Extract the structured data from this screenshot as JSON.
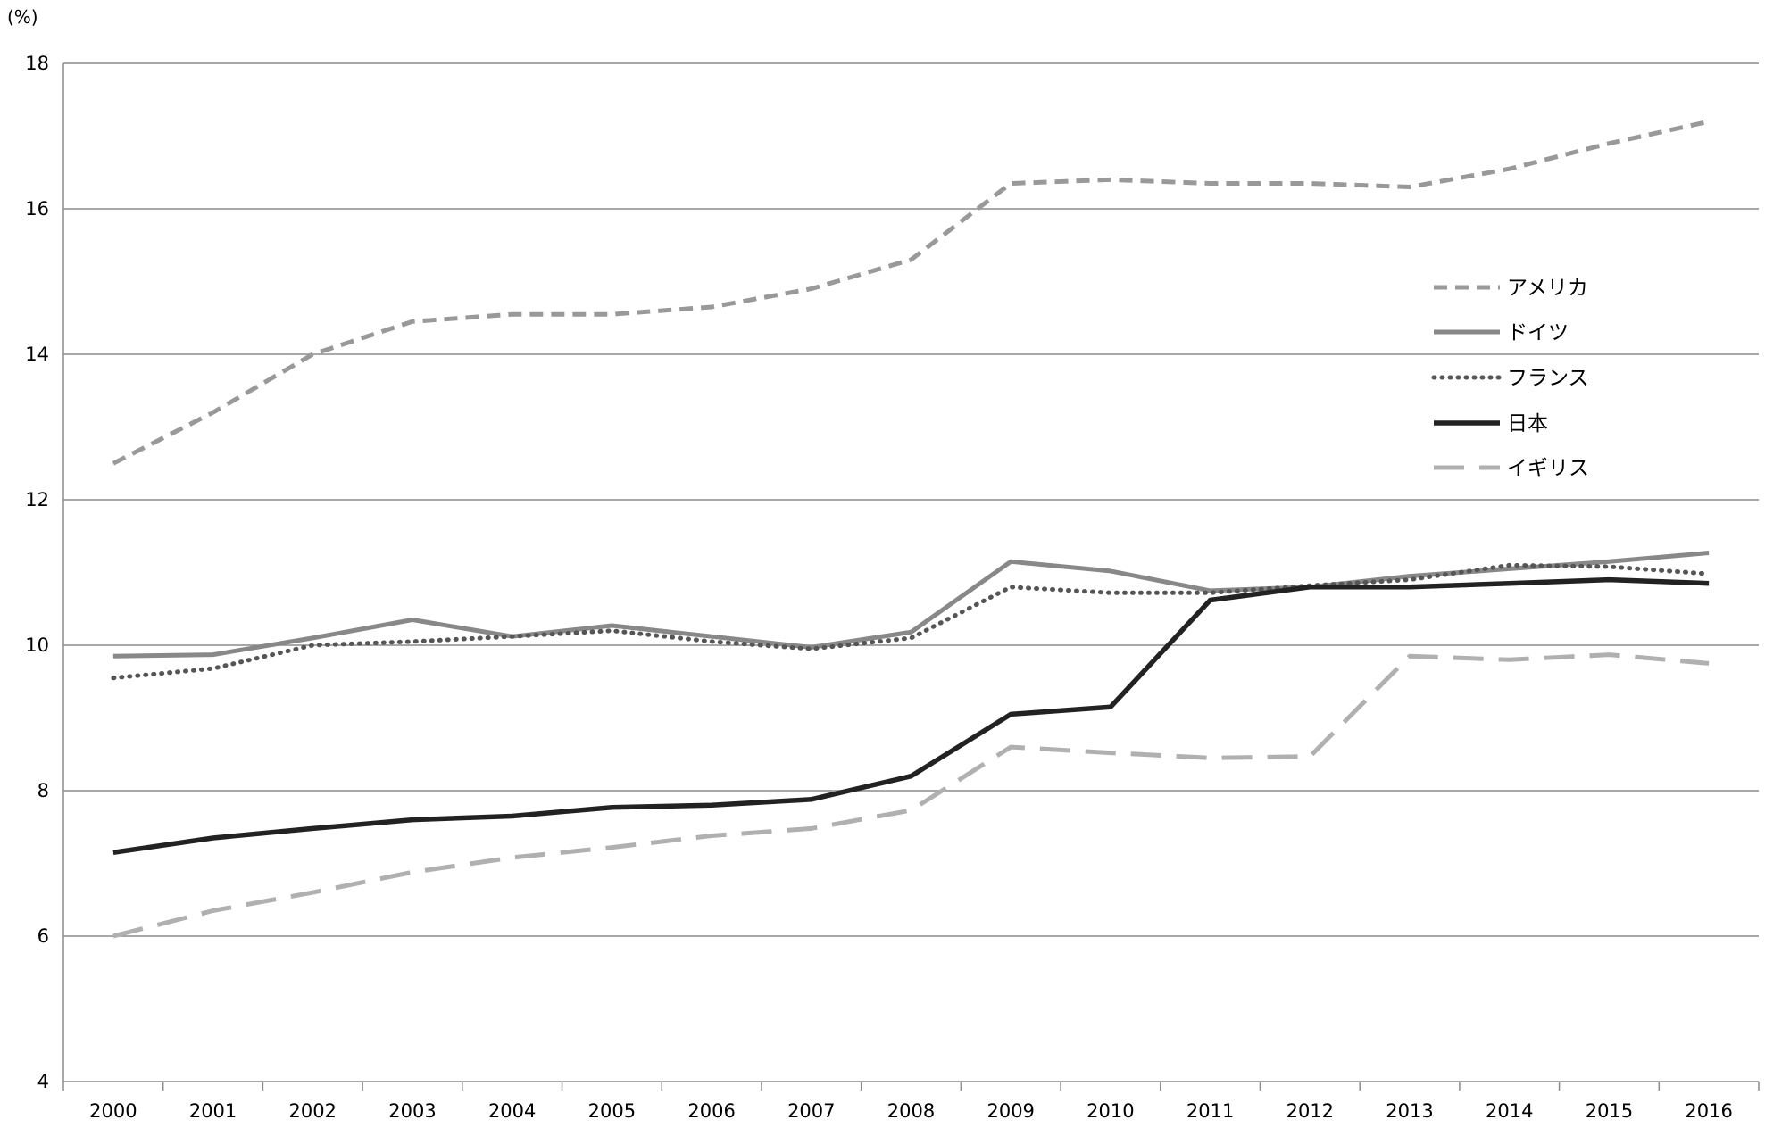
{
  "chart_data": {
    "type": "line",
    "y_unit": "(%)",
    "title": "",
    "xlabel": "",
    "ylabel": "",
    "x": [
      "2000",
      "2001",
      "2002",
      "2003",
      "2004",
      "2005",
      "2006",
      "2007",
      "2008",
      "2009",
      "2010",
      "2011",
      "2012",
      "2013",
      "2014",
      "2015",
      "2016"
    ],
    "ylim": [
      4,
      18
    ],
    "yticks": [
      4,
      6,
      8,
      10,
      12,
      14,
      16,
      18
    ],
    "grid": "horizontal",
    "legend_position": "right-upper",
    "series": [
      {
        "name": "アメリカ",
        "style": "dashed",
        "color": "#999999",
        "values": [
          12.5,
          13.2,
          14.0,
          14.45,
          14.55,
          14.55,
          14.65,
          14.9,
          15.3,
          16.35,
          16.4,
          16.35,
          16.35,
          16.3,
          16.55,
          16.9,
          17.2
        ]
      },
      {
        "name": "ドイツ",
        "style": "solid",
        "color": "#888888",
        "values": [
          9.85,
          9.87,
          10.1,
          10.35,
          10.12,
          10.27,
          10.12,
          9.97,
          10.18,
          11.15,
          11.02,
          10.75,
          10.8,
          10.95,
          11.05,
          11.15,
          11.27
        ]
      },
      {
        "name": "フランス",
        "style": "dotted",
        "color": "#555555",
        "values": [
          9.55,
          9.68,
          10.0,
          10.05,
          10.12,
          10.2,
          10.05,
          9.95,
          10.1,
          10.8,
          10.72,
          10.72,
          10.82,
          10.9,
          11.1,
          11.08,
          10.98
        ]
      },
      {
        "name": "日本",
        "style": "solid",
        "color": "#222222",
        "values": [
          7.15,
          7.35,
          7.48,
          7.6,
          7.65,
          7.77,
          7.8,
          7.88,
          8.2,
          9.05,
          9.15,
          10.62,
          10.8,
          10.8,
          10.85,
          10.9,
          10.85
        ]
      },
      {
        "name": "イギリス",
        "style": "longdash",
        "color": "#b0b0b0",
        "values": [
          6.0,
          6.35,
          6.6,
          6.88,
          7.08,
          7.22,
          7.38,
          7.48,
          7.73,
          8.6,
          8.52,
          8.45,
          8.47,
          9.85,
          9.8,
          9.87,
          9.75
        ]
      }
    ]
  }
}
